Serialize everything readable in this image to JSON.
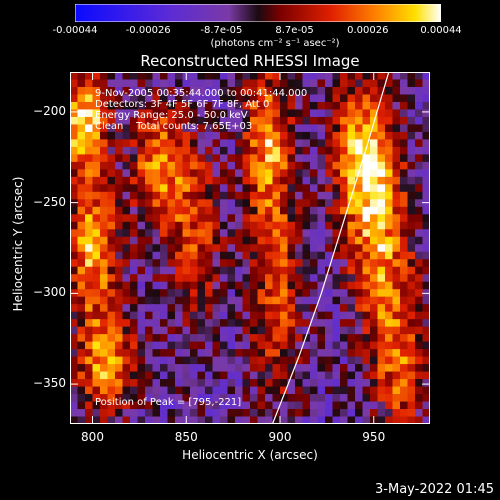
{
  "chart_data": {
    "type": "heatmap",
    "title": "Reconstructed RHESSI Image",
    "xlabel": "Heliocentric X (arcsec)",
    "ylabel": "Heliocentric Y (arcsec)",
    "xlim": [
      788,
      980
    ],
    "ylim": [
      -372,
      -178
    ],
    "xticks": [
      800,
      850,
      900,
      950
    ],
    "yticks": [
      -200,
      -250,
      -300,
      -350
    ],
    "colorbar": {
      "ticks": [
        "-0.00044",
        "-0.00026",
        "-8.7e-05",
        "8.7e-05",
        "0.00026",
        "0.00044"
      ],
      "unit": "(photons cm⁻² s⁻¹ asec⁻²)",
      "range": [
        -0.00044,
        0.00044
      ]
    },
    "annotations": {
      "time": "9-Nov-2005 00:35:44.000 to 00:41:44.000",
      "detectors": "Detectors: 3F 4F 5F 6F 7F 8F, Att 0",
      "energy": "Energy Range: 25.0 - 50.0 keV",
      "method": "Clean    Total counts: 7.65E+03",
      "peak": "Position of Peak = [795,-221]"
    },
    "peak": [
      795,
      -221
    ],
    "limb_arc": [
      [
        896,
        -372
      ],
      [
        910,
        -335
      ],
      [
        922,
        -300
      ],
      [
        934,
        -260
      ],
      [
        946,
        -220
      ],
      [
        958,
        -178
      ]
    ],
    "sources": [
      {
        "x": 795,
        "y": -205,
        "amp": 1.0,
        "sx": 9,
        "sy": 18
      },
      {
        "x": 800,
        "y": -275,
        "amp": 0.85,
        "sx": 10,
        "sy": 30
      },
      {
        "x": 808,
        "y": -340,
        "amp": 0.8,
        "sx": 12,
        "sy": 18
      },
      {
        "x": 835,
        "y": -230,
        "amp": 0.75,
        "sx": 10,
        "sy": 25
      },
      {
        "x": 855,
        "y": -265,
        "amp": 0.55,
        "sx": 10,
        "sy": 35
      },
      {
        "x": 893,
        "y": -215,
        "amp": 0.75,
        "sx": 9,
        "sy": 30
      },
      {
        "x": 898,
        "y": -300,
        "amp": 0.6,
        "sx": 10,
        "sy": 45
      },
      {
        "x": 945,
        "y": -225,
        "amp": 0.95,
        "sx": 12,
        "sy": 30
      },
      {
        "x": 955,
        "y": -285,
        "amp": 0.7,
        "sx": 12,
        "sy": 35
      },
      {
        "x": 965,
        "y": -345,
        "amp": 0.55,
        "sx": 10,
        "sy": 25
      }
    ]
  },
  "timestamp": "3-May-2022 01:45"
}
